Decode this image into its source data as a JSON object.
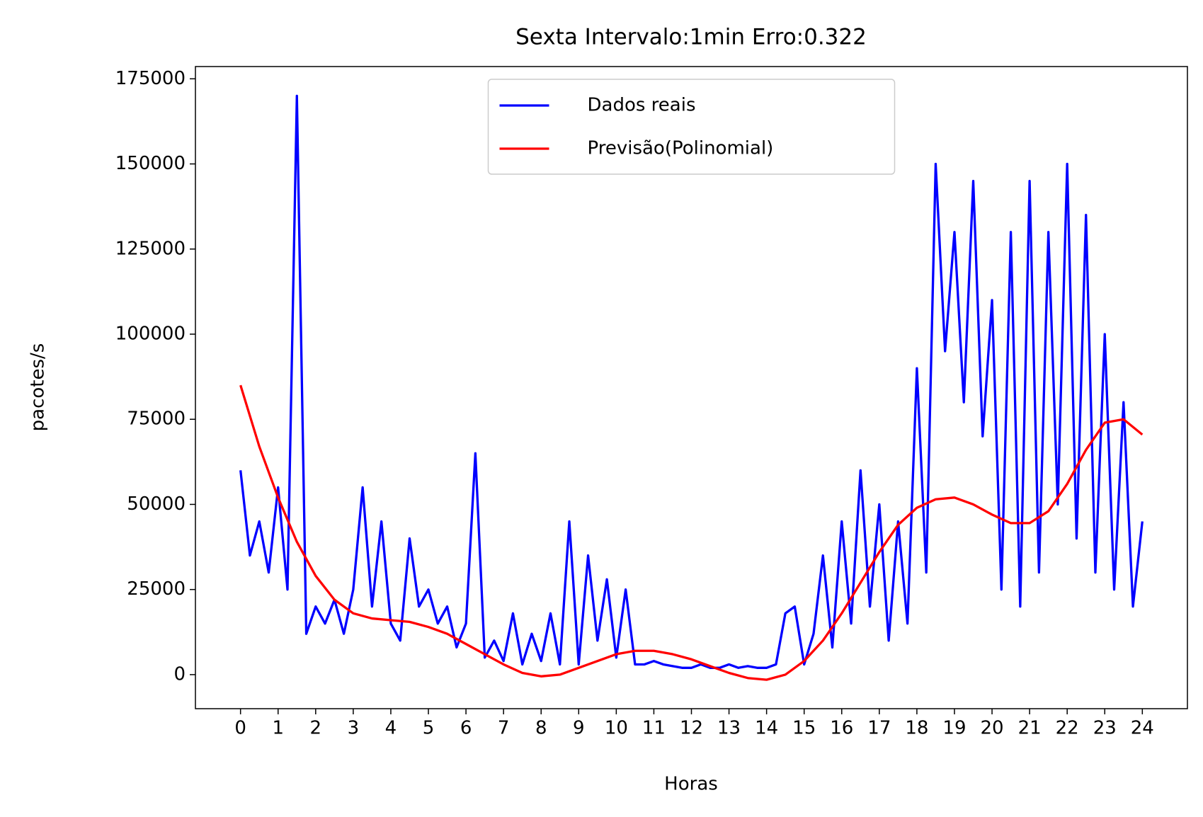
{
  "chart_data": {
    "type": "line",
    "title": "Sexta Intervalo:1min Erro:0.322",
    "x_label": "Horas",
    "y_label": "pacotes/s",
    "xlim": [
      -1.2,
      25.2
    ],
    "ylim": [
      -10000,
      178600
    ],
    "xticks": [
      0,
      1,
      2,
      3,
      4,
      5,
      6,
      7,
      8,
      9,
      10,
      11,
      12,
      13,
      14,
      15,
      16,
      17,
      18,
      19,
      20,
      21,
      22,
      23,
      24
    ],
    "yticks": [
      0,
      25000,
      50000,
      75000,
      100000,
      125000,
      150000,
      175000
    ],
    "legend": "upper center",
    "series": [
      {
        "name": "Dados reais",
        "color": "#0000ff",
        "x": [
          0,
          0.25,
          0.5,
          0.75,
          1,
          1.25,
          1.5,
          1.75,
          2,
          2.25,
          2.5,
          2.75,
          3,
          3.25,
          3.5,
          3.75,
          4,
          4.25,
          4.5,
          4.75,
          5,
          5.25,
          5.5,
          5.75,
          6,
          6.25,
          6.5,
          6.75,
          7,
          7.25,
          7.5,
          7.75,
          8,
          8.25,
          8.5,
          8.75,
          9,
          9.25,
          9.5,
          9.75,
          10,
          10.25,
          10.5,
          10.75,
          11,
          11.25,
          11.5,
          11.75,
          12,
          12.25,
          12.5,
          12.75,
          13,
          13.25,
          13.5,
          13.75,
          14,
          14.25,
          14.5,
          14.75,
          15,
          15.25,
          15.5,
          15.75,
          16,
          16.25,
          16.5,
          16.75,
          17,
          17.25,
          17.5,
          17.75,
          18,
          18.25,
          18.5,
          18.75,
          19,
          19.25,
          19.5,
          19.75,
          20,
          20.25,
          20.5,
          20.75,
          21,
          21.25,
          21.5,
          21.75,
          22,
          22.25,
          22.5,
          22.75,
          23,
          23.25,
          23.5,
          23.75,
          24
        ],
        "values": [
          60000,
          35000,
          45000,
          30000,
          55000,
          25000,
          170000,
          12000,
          20000,
          15000,
          22000,
          12000,
          25000,
          55000,
          20000,
          45000,
          15000,
          10000,
          40000,
          20000,
          25000,
          15000,
          20000,
          8000,
          15000,
          65000,
          5000,
          10000,
          4000,
          18000,
          3000,
          12000,
          4000,
          18000,
          3000,
          45000,
          3000,
          35000,
          10000,
          28000,
          5000,
          25000,
          3000,
          3000,
          4000,
          3000,
          2500,
          2000,
          2000,
          3000,
          2000,
          2000,
          3000,
          2000,
          2500,
          2000,
          2000,
          3000,
          18000,
          20000,
          3000,
          12000,
          35000,
          8000,
          45000,
          15000,
          60000,
          20000,
          50000,
          10000,
          45000,
          15000,
          90000,
          30000,
          150000,
          95000,
          130000,
          80000,
          145000,
          70000,
          110000,
          25000,
          130000,
          20000,
          145000,
          30000,
          130000,
          50000,
          150000,
          40000,
          135000,
          30000,
          100000,
          25000,
          80000,
          20000,
          45000
        ]
      },
      {
        "name": "Previsão(Polinomial)",
        "color": "#ff0000",
        "x": [
          0,
          0.5,
          1,
          1.5,
          2,
          2.5,
          3,
          3.5,
          4,
          4.5,
          5,
          5.5,
          6,
          6.5,
          7,
          7.5,
          8,
          8.5,
          9,
          9.5,
          10,
          10.5,
          11,
          11.5,
          12,
          12.5,
          13,
          13.5,
          14,
          14.5,
          15,
          15.5,
          16,
          16.5,
          17,
          17.5,
          18,
          18.5,
          19,
          19.5,
          20,
          20.5,
          21,
          21.5,
          22,
          22.5,
          23,
          23.5,
          24
        ],
        "values": [
          85000,
          67000,
          52000,
          39000,
          29000,
          22000,
          18000,
          16500,
          16000,
          15500,
          14000,
          12000,
          9000,
          6000,
          3000,
          500,
          -500,
          0,
          2000,
          4000,
          6000,
          7000,
          7000,
          6000,
          4500,
          2500,
          500,
          -1000,
          -1500,
          0,
          4000,
          10000,
          18000,
          27000,
          36000,
          44000,
          49000,
          51500,
          52000,
          50000,
          47000,
          44500,
          44500,
          48000,
          56000,
          66000,
          74000,
          75000,
          70500
        ]
      }
    ]
  }
}
